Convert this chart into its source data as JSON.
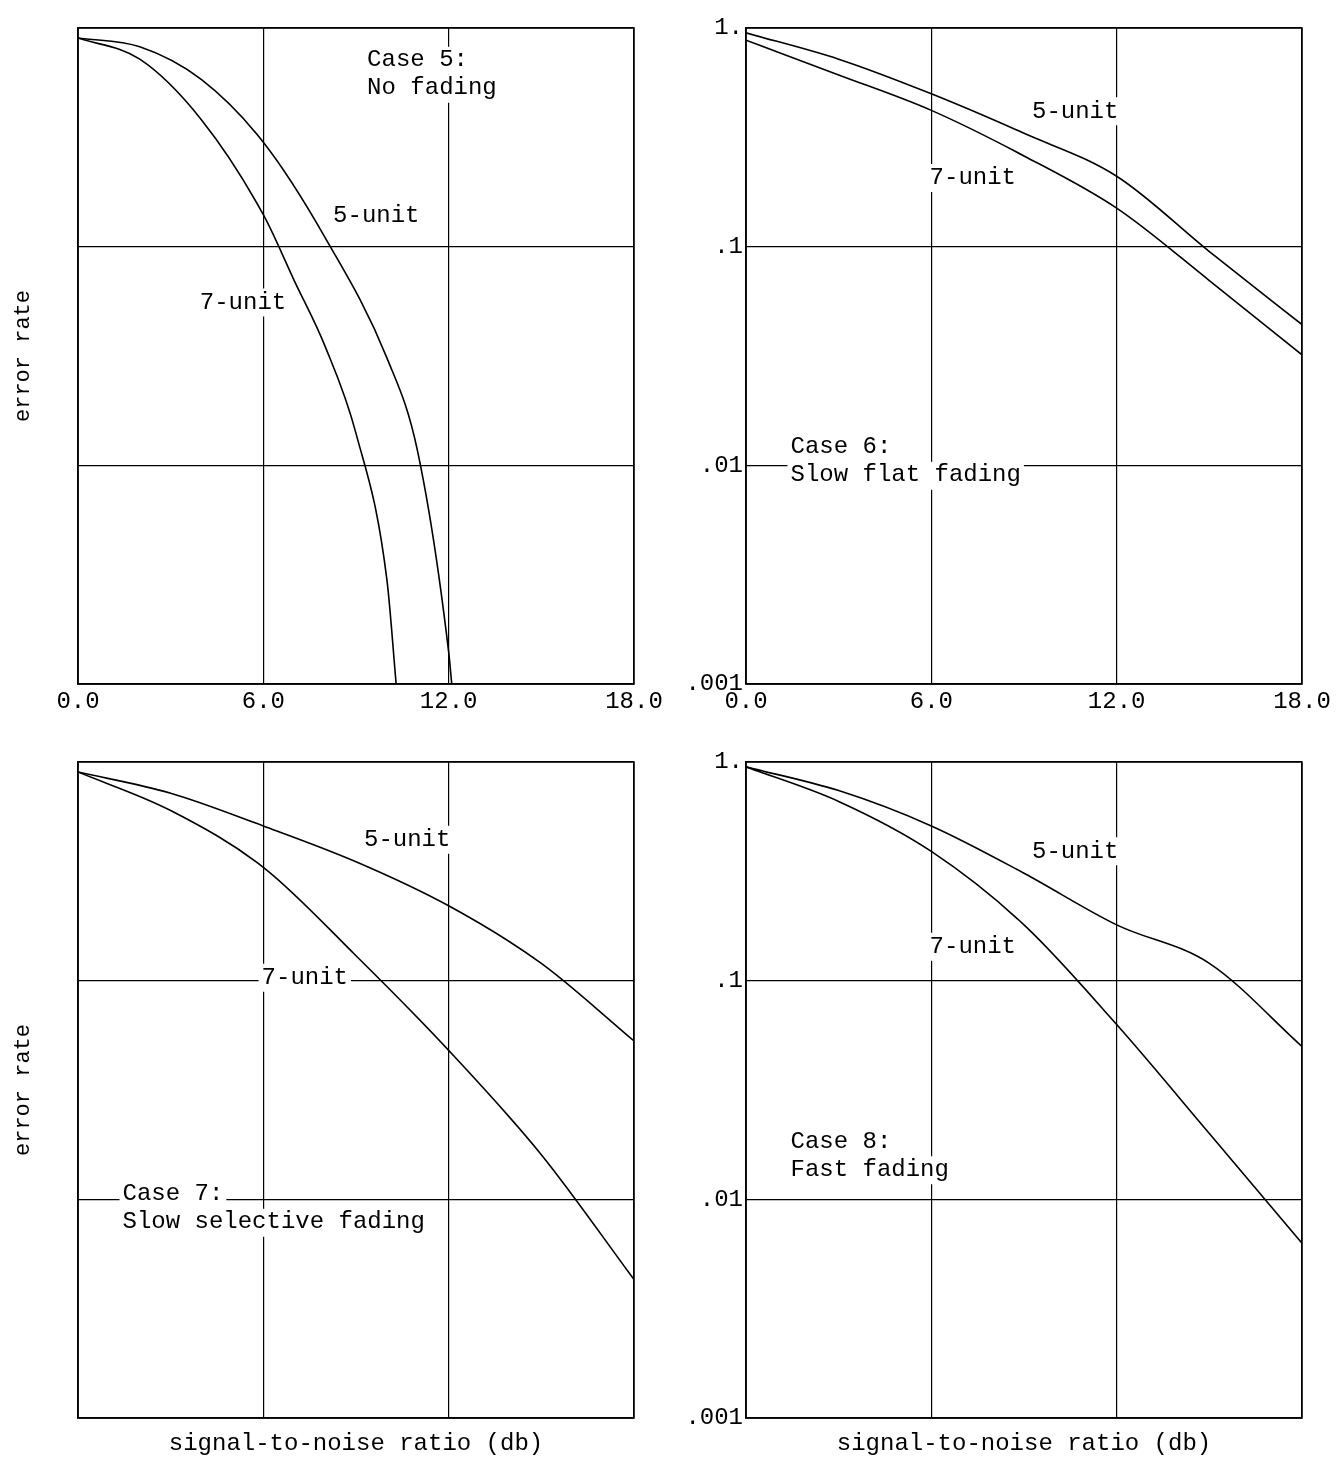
{
  "chart_data": [
    {
      "type": "line",
      "ylabel": "error rate",
      "log": "y",
      "grid": true,
      "legend": false,
      "tick_labels": "x",
      "xlim": [
        0,
        18
      ],
      "xticks": [
        {
          "value": 0,
          "label": "0.0"
        },
        {
          "value": 6,
          "label": "6.0"
        },
        {
          "value": 12,
          "label": "12.0"
        },
        {
          "value": 18,
          "label": "18.0"
        }
      ],
      "ylim": [
        0.001,
        1
      ],
      "yticks": [
        0.001,
        0.01,
        0.1,
        1
      ],
      "annotations": [
        "Case 5:\nNo fading"
      ],
      "series": [
        {
          "name": "7-unit",
          "color": "#000000",
          "x": [
            0,
            2,
            4,
            6,
            7,
            8,
            9,
            10,
            10.3
          ],
          "values": [
            0.9,
            0.72,
            0.38,
            0.14,
            0.07,
            0.035,
            0.014,
            0.003,
            0.001
          ]
        },
        {
          "name": "5-unit",
          "color": "#000000",
          "x": [
            0,
            2,
            4,
            6,
            8,
            10,
            11,
            12,
            12.1
          ],
          "values": [
            0.9,
            0.82,
            0.58,
            0.3,
            0.11,
            0.031,
            0.0115,
            0.0014,
            0.001
          ]
        }
      ]
    },
    {
      "type": "line",
      "log": "y",
      "grid": true,
      "legend": false,
      "xlim": [
        0,
        18
      ],
      "xticks": [
        {
          "value": 0,
          "label": "0.0"
        },
        {
          "value": 6,
          "label": "6.0"
        },
        {
          "value": 12,
          "label": "12.0"
        },
        {
          "value": 18,
          "label": "18.0"
        }
      ],
      "ylim": [
        0.001,
        1
      ],
      "yticks": [
        {
          "value": 0.001,
          "label": ".001"
        },
        {
          "value": 0.01,
          "label": ".01"
        },
        {
          "value": 0.1,
          "label": ".1"
        },
        {
          "value": 1,
          "label": "1."
        }
      ],
      "annotations": [
        "Case 6:\nSlow flat fading"
      ],
      "series": [
        {
          "name": "5-unit",
          "color": "#000000",
          "x": [
            0,
            3,
            6,
            9,
            12,
            15,
            18
          ],
          "values": [
            0.95,
            0.72,
            0.5,
            0.33,
            0.21,
            0.095,
            0.044
          ]
        },
        {
          "name": "7-unit",
          "color": "#000000",
          "x": [
            0,
            3,
            6,
            9,
            12,
            15,
            18
          ],
          "values": [
            0.88,
            0.61,
            0.42,
            0.26,
            0.15,
            0.07,
            0.032
          ]
        }
      ]
    },
    {
      "type": "line",
      "xlabel": "signal-to-noise ratio (db)",
      "ylabel": "error rate",
      "log": "y",
      "grid": true,
      "legend": false,
      "tick_labels": false,
      "xlim": [
        0,
        18
      ],
      "xticks": [
        0,
        6,
        12,
        18
      ],
      "ylim": [
        0.001,
        1
      ],
      "yticks": [
        0.001,
        0.01,
        0.1,
        1
      ],
      "annotations": [
        "Case 7:\nSlow selective fading"
      ],
      "series": [
        {
          "name": "5-unit",
          "color": "#000000",
          "x": [
            0,
            3,
            6,
            9,
            12,
            15,
            18
          ],
          "values": [
            0.9,
            0.72,
            0.51,
            0.35,
            0.22,
            0.12,
            0.053
          ]
        },
        {
          "name": "7-unit",
          "color": "#000000",
          "x": [
            0,
            3,
            6,
            9,
            12,
            15,
            18
          ],
          "values": [
            0.9,
            0.6,
            0.33,
            0.13,
            0.048,
            0.016,
            0.0043
          ]
        }
      ]
    },
    {
      "type": "line",
      "xlabel": "signal-to-noise ratio (db)",
      "log": "y",
      "grid": true,
      "legend": false,
      "tick_labels": "y",
      "xlim": [
        0,
        18
      ],
      "xticks": [
        0,
        6,
        12,
        18
      ],
      "ylim": [
        0.001,
        1
      ],
      "yticks": [
        {
          "value": 0.001,
          "label": ".001"
        },
        {
          "value": 0.01,
          "label": ".01"
        },
        {
          "value": 0.1,
          "label": ".1"
        },
        {
          "value": 1,
          "label": "1."
        }
      ],
      "annotations": [
        "Case 8:\nFast fading"
      ],
      "series": [
        {
          "name": "5-unit",
          "color": "#000000",
          "x": [
            0,
            3,
            6,
            9,
            12,
            15,
            18
          ],
          "values": [
            0.95,
            0.74,
            0.51,
            0.31,
            0.18,
            0.12,
            0.05
          ]
        },
        {
          "name": "7-unit",
          "color": "#000000",
          "x": [
            0,
            3,
            6,
            9,
            12,
            15,
            18
          ],
          "values": [
            0.95,
            0.66,
            0.39,
            0.18,
            0.063,
            0.02,
            0.0063
          ]
        }
      ]
    }
  ]
}
